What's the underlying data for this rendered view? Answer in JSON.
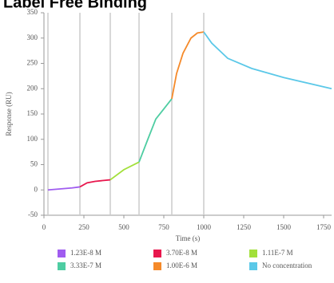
{
  "chart_data": {
    "type": "line",
    "title": "Label Free Binding",
    "x_label": "Time (s)",
    "y_label": "Response (RU)",
    "xlim": [
      0,
      1800
    ],
    "xticks": [
      0,
      250,
      500,
      750,
      1000,
      1250,
      1500,
      1750
    ],
    "ylim": [
      -50,
      350
    ],
    "yticks": [
      -50,
      0,
      50,
      100,
      150,
      200,
      250,
      300,
      350
    ],
    "injection_times": [
      25,
      225,
      415,
      595,
      800,
      1000
    ],
    "series": [
      {
        "name": "1.23E-8 M",
        "color": "#a05cf0",
        "x": [
          25,
          100,
          175,
          225
        ],
        "values": [
          0,
          2,
          4,
          6
        ]
      },
      {
        "name": "3.70E-8 M",
        "color": "#e8174d",
        "x": [
          225,
          270,
          320,
          415
        ],
        "values": [
          6,
          14,
          17,
          20
        ]
      },
      {
        "name": "1.11E-7 M",
        "color": "#a2e03a",
        "x": [
          415,
          500,
          595
        ],
        "values": [
          20,
          40,
          55
        ]
      },
      {
        "name": "3.33E-7 M",
        "color": "#4ecda2",
        "x": [
          595,
          650,
          700,
          750,
          800
        ],
        "values": [
          55,
          100,
          140,
          160,
          180
        ]
      },
      {
        "name": "1.00E-6 M",
        "color": "#f58a2a",
        "x": [
          800,
          830,
          870,
          920,
          960,
          1000
        ],
        "values": [
          180,
          230,
          270,
          300,
          310,
          312
        ]
      },
      {
        "name": "No concentration",
        "color": "#5bc8e8",
        "x": [
          1000,
          1050,
          1150,
          1300,
          1500,
          1800
        ],
        "values": [
          312,
          290,
          260,
          240,
          222,
          200
        ]
      }
    ]
  }
}
